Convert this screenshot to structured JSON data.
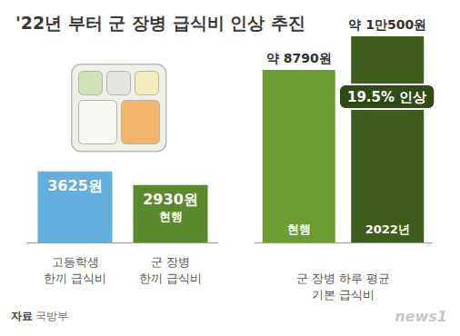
{
  "title": "'22년 부터 군 장병 급식비 인상 추진",
  "source": "자료 국방부",
  "credit": "news1",
  "chart_data": [
    {
      "type": "bar",
      "categories": [
        "고등학생\n한끼 급식비",
        "군 장병\n한끼 급식비"
      ],
      "values": [
        3625,
        2930
      ],
      "value_labels": [
        "3625원",
        "2930원"
      ],
      "inner_labels": [
        null,
        "현행"
      ],
      "colors": [
        "#62aedc",
        "#5a8a2b"
      ],
      "ylim": [
        0,
        10500
      ],
      "data_labels": true,
      "tick_labels": "x",
      "grid": false
    },
    {
      "type": "bar",
      "xlabel": "군 장병 하루 평균\n기본 급식비",
      "categories": [
        "현행",
        "2022년"
      ],
      "values": [
        8790,
        10500
      ],
      "value_labels": [
        "약 8790원",
        "약 1만500원"
      ],
      "annotation": "19.5% 인상",
      "colors": [
        "#6c9d33",
        "#3e5d1c"
      ],
      "ylim": [
        0,
        10500
      ],
      "data_labels": true,
      "tick_labels": false,
      "grid": false
    }
  ]
}
